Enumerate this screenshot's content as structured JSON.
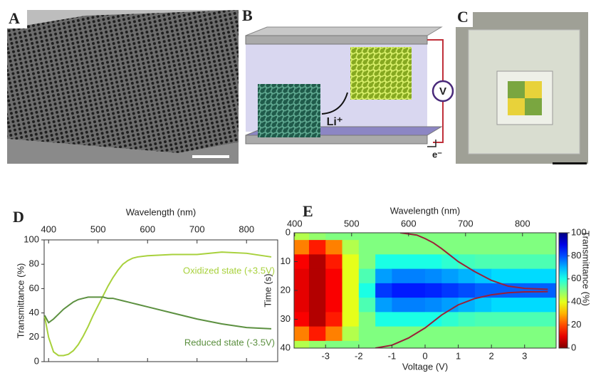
{
  "panels": [
    {
      "label": "A"
    },
    {
      "label": "B",
      "annotations": [
        "V",
        "Li⁺",
        "e⁻"
      ]
    },
    {
      "label": "C"
    }
  ],
  "chart_data": [
    {
      "type": "line",
      "panel_label": "D",
      "x_label": "Wavelength (nm)",
      "y_label": "Transmittance (%)",
      "x": [
        392,
        400,
        410,
        420,
        430,
        440,
        450,
        460,
        470,
        480,
        490,
        500,
        510,
        520,
        530,
        540,
        550,
        560,
        570,
        580,
        600,
        650,
        700,
        750,
        800,
        850
      ],
      "series": [
        {
          "name": "Oxidized state (+3.5V)",
          "color": "#a8d13c",
          "values": [
            37,
            20,
            8,
            5,
            5,
            6,
            9,
            14,
            21,
            29,
            38,
            46,
            54,
            62,
            69,
            75,
            80,
            83,
            85,
            86,
            87,
            88,
            88,
            90,
            89,
            86
          ]
        },
        {
          "name": "Reduced state (-3.5V)",
          "color": "#5c9040",
          "values": [
            38,
            32,
            35,
            39,
            43,
            46,
            49,
            51,
            52,
            53,
            53,
            53,
            53,
            52,
            52,
            51,
            50,
            49,
            48,
            47,
            45,
            40,
            35,
            31,
            28,
            27
          ]
        }
      ],
      "xlim": [
        391,
        863
      ],
      "xticks": [
        400,
        500,
        600,
        700,
        800
      ],
      "ylim": [
        0,
        100
      ],
      "yticks": [
        0,
        20,
        40,
        60,
        80,
        100
      ]
    },
    {
      "type": "heatmap",
      "panel_label": "E",
      "x_label": "Voltage (V)",
      "x2_label": "Wavelength (nm)",
      "y_label": "Time (s)",
      "color_label": "Transmittance (%)",
      "colormap": "jet_r",
      "x": [
        -3.75,
        -3.25,
        -2.75,
        -2.25,
        -1.75,
        -1.25,
        -0.75,
        -0.25,
        0.25,
        0.75,
        1.25,
        1.75,
        2.25,
        2.75,
        3.25,
        3.75
      ],
      "y": [
        0,
        5,
        10,
        15,
        20,
        25,
        30,
        35,
        40
      ],
      "z": [
        [
          45,
          48,
          50,
          50,
          50,
          50,
          50,
          50,
          50,
          50,
          50,
          50,
          50,
          50,
          50,
          50
        ],
        [
          25,
          15,
          25,
          45,
          50,
          50,
          50,
          50,
          50,
          50,
          50,
          50,
          50,
          50,
          50,
          50
        ],
        [
          12,
          5,
          15,
          40,
          50,
          60,
          60,
          60,
          60,
          58,
          56,
          55,
          55,
          55,
          55,
          55
        ],
        [
          10,
          5,
          12,
          40,
          55,
          72,
          75,
          75,
          74,
          72,
          70,
          68,
          66,
          66,
          66,
          66
        ],
        [
          10,
          5,
          12,
          40,
          60,
          82,
          85,
          85,
          84,
          82,
          80,
          78,
          78,
          78,
          78,
          78
        ],
        [
          10,
          5,
          12,
          40,
          55,
          72,
          75,
          75,
          74,
          72,
          70,
          68,
          66,
          66,
          66,
          66
        ],
        [
          12,
          5,
          15,
          40,
          50,
          60,
          60,
          60,
          60,
          58,
          56,
          55,
          55,
          55,
          55,
          55
        ],
        [
          25,
          15,
          25,
          45,
          50,
          50,
          50,
          50,
          50,
          50,
          50,
          50,
          50,
          50,
          50,
          50
        ],
        [
          45,
          48,
          50,
          50,
          50,
          50,
          50,
          50,
          50,
          50,
          50,
          50,
          50,
          50,
          50,
          50
        ]
      ],
      "lines": [
        {
          "color": "#9a2038",
          "x": [
            -0.75,
            -0.25,
            0,
            0.25,
            0.5,
            1,
            1.5,
            2,
            2.5,
            3,
            3.7
          ],
          "values": [
            0,
            0.8,
            2,
            3.5,
            5.5,
            10,
            13.5,
            16.5,
            18.5,
            19.3,
            19.6
          ]
        },
        {
          "color": "#9a2038",
          "x": [
            -1.5,
            -1,
            -0.5,
            0,
            0.5,
            1,
            1.5,
            2,
            2.5,
            3,
            3.7
          ],
          "values": [
            40,
            39,
            36.5,
            33,
            28.5,
            25,
            22.8,
            21.5,
            20.8,
            20.5,
            20.4
          ]
        }
      ],
      "xlim": [
        -3.95,
        3.95
      ],
      "xticks": [
        -3,
        -2,
        -1,
        0,
        1,
        2,
        3
      ],
      "x2lim": [
        399,
        859
      ],
      "x2ticks": [
        400,
        500,
        600,
        700,
        800
      ],
      "ylim": [
        0,
        40
      ],
      "y_inverted": true,
      "yticks": [
        0,
        10,
        20,
        30,
        40
      ],
      "clim": [
        0,
        100
      ],
      "cticks": [
        0,
        20,
        40,
        60,
        80,
        100
      ]
    }
  ]
}
